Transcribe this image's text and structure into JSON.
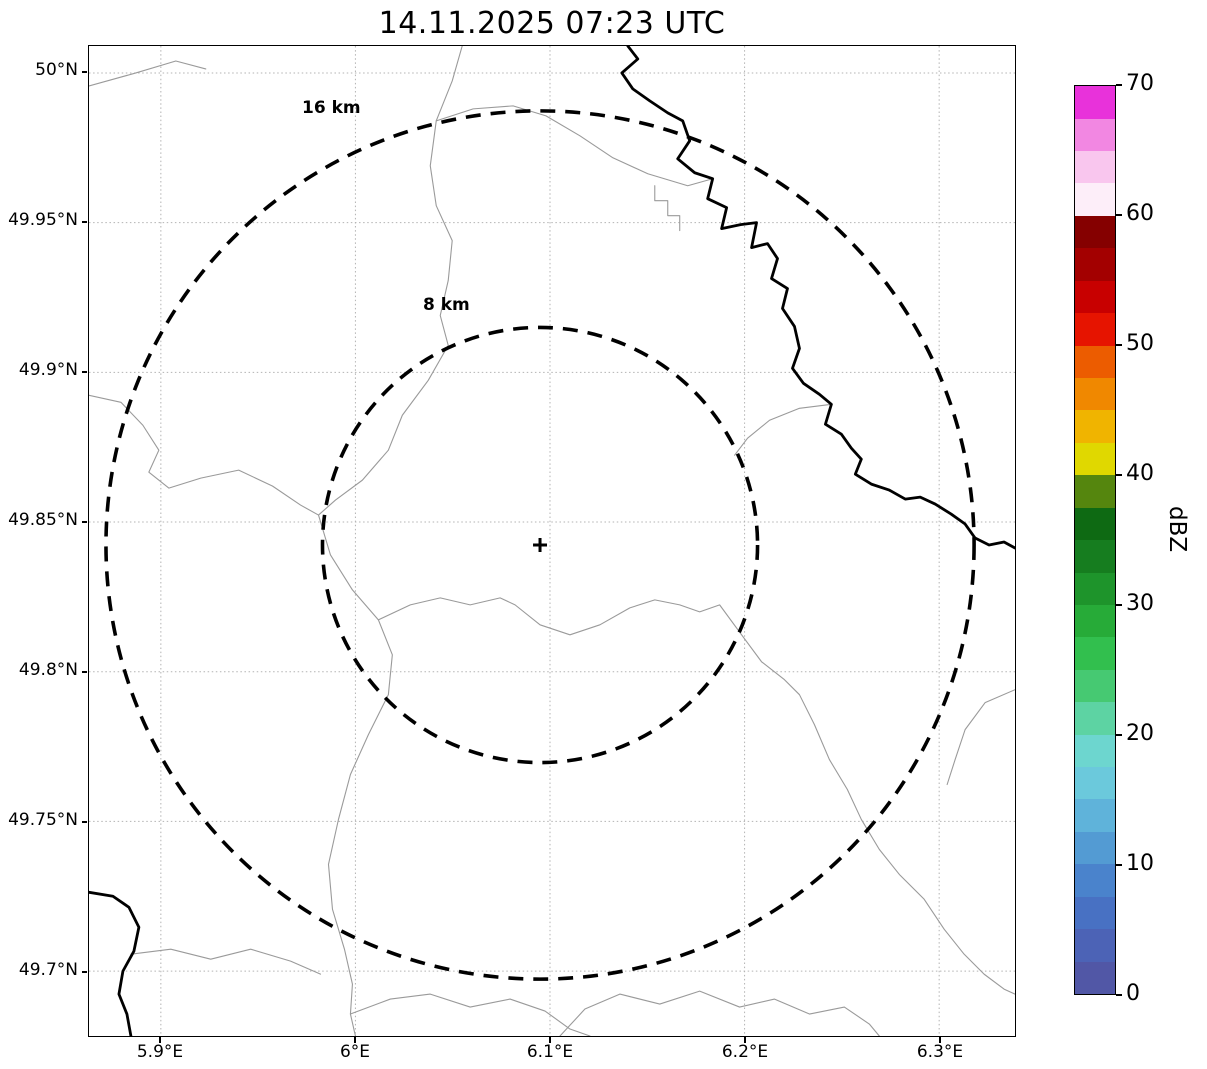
{
  "title": "14.11.2025 07:23 UTC",
  "map": {
    "y_ticks": [
      "50°N",
      "49.95°N",
      "49.9°N",
      "49.85°N",
      "49.8°N",
      "49.75°N",
      "49.7°N"
    ],
    "x_ticks": [
      "5.9°E",
      "6°E",
      "6.1°E",
      "6.2°E",
      "6.3°E"
    ],
    "range_rings": [
      {
        "label": "16 km",
        "radius_km": 16
      },
      {
        "label": "8 km",
        "radius_km": 8
      }
    ],
    "center_marker": "+",
    "boundary_color": "#9a9a9a",
    "border_river_color": "#000000"
  },
  "colorbar": {
    "label": "dBZ",
    "min": 0,
    "max": 70,
    "ticks": [
      0,
      10,
      20,
      30,
      40,
      50,
      60,
      70
    ],
    "colors_bottom_to_top": [
      "#5157a6",
      "#4c63b6",
      "#4871c3",
      "#4a83cc",
      "#539bd3",
      "#5fb3da",
      "#6bc9dc",
      "#6dd6cf",
      "#5dd3a3",
      "#46c972",
      "#32bf4e",
      "#27ab38",
      "#1e942b",
      "#167d1f",
      "#0e6a13",
      "#55860e",
      "#e0d800",
      "#f0b400",
      "#f08800",
      "#ec5c00",
      "#e61400",
      "#c80000",
      "#a30000",
      "#850000",
      "#fdeef9",
      "#f9c6ee",
      "#f287e2",
      "#e832da"
    ]
  }
}
